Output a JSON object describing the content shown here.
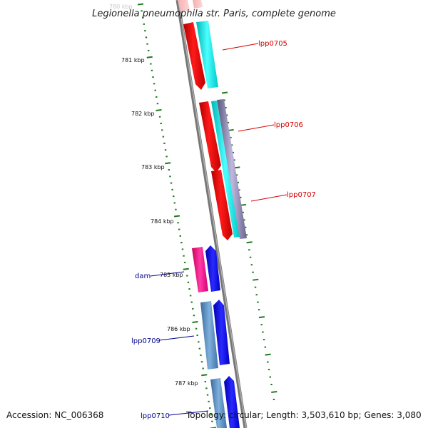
{
  "title": "Legionella pneumophila str. Paris, complete genome",
  "footer": {
    "accession": "Accession: NC_006368",
    "stats": "Topology: circular; Length: 3,503,610 bp; Genes: 3,080"
  },
  "ruler": {
    "faded_label": "780 kbp",
    "labels": [
      "781 kbp",
      "782 kbp",
      "783 kbp",
      "784 kbp",
      "785 kbp",
      "786 kbp",
      "787 kbp"
    ]
  },
  "gene_labels": [
    {
      "text": "lpp0705",
      "color": "#d40000"
    },
    {
      "text": "lpp0706",
      "color": "#d40000"
    },
    {
      "text": "lpp0707",
      "color": "#d40000"
    },
    {
      "text": "dam",
      "color": "#00008b"
    },
    {
      "text": "lpp0709",
      "color": "#00008b"
    },
    {
      "text": "lpp0710",
      "color": "#00008b"
    }
  ],
  "colors": {
    "backbone": "#8c8c8c",
    "dotted_gc": "#1f7a1f",
    "gene_red": "#ff0000",
    "gene_cyan": "#00e5e5",
    "gene_blue": "#0000ff",
    "gene_steelblue": "#4a7fb5",
    "gene_magenta": "#ff1493",
    "gene_lilac": "#a89cc8"
  }
}
